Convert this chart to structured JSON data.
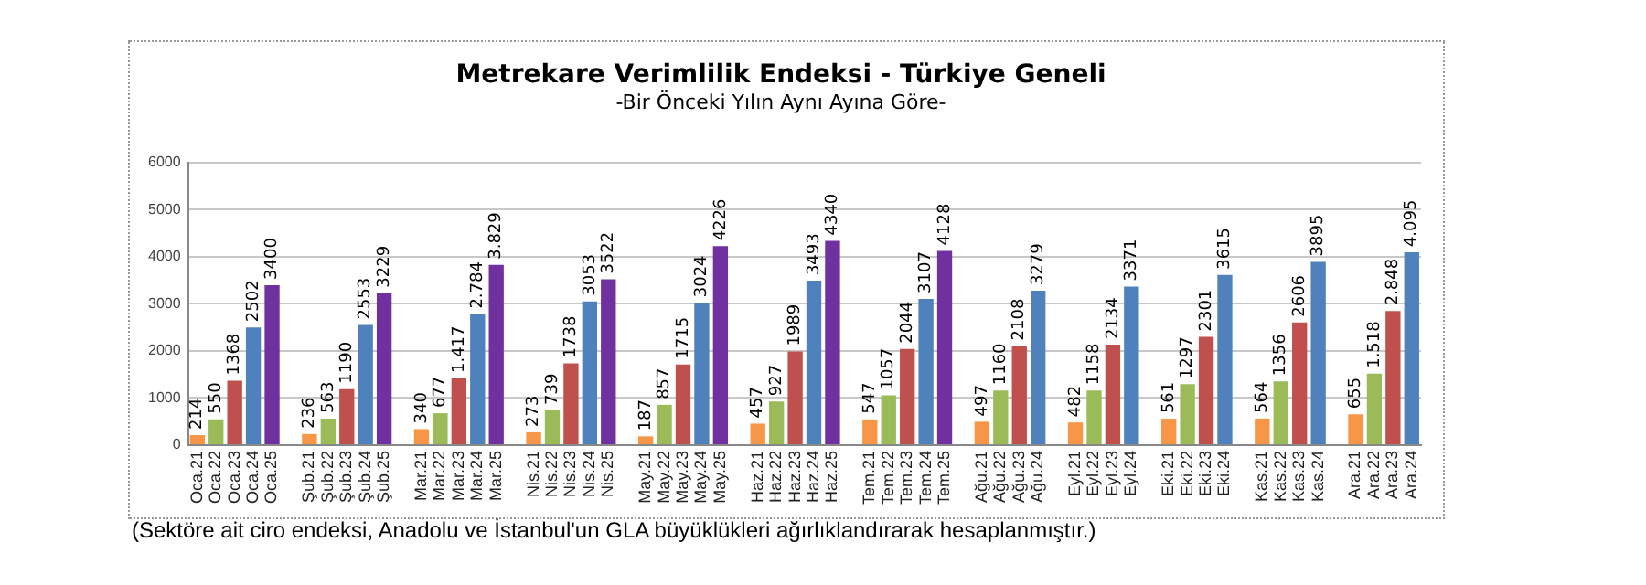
{
  "chart_data": {
    "type": "bar",
    "title": "Metrekare Verimlilik Endeksi - Türkiye Geneli",
    "subtitle": "-Bir Önceki Yılın Aynı Ayına Göre-",
    "categories": [
      "Oca.21",
      "Oca.22",
      "Oca.23",
      "Oca.24",
      "Oca.25",
      null,
      "Şub.21",
      "Şub.22",
      "Şub.23",
      "Şub.24",
      "Şub.25",
      null,
      "Mar.21",
      "Mar.22",
      "Mar.23",
      "Mar.24",
      "Mar.25",
      null,
      "Nis.21",
      "Nis.22",
      "Nis.23",
      "Nis.24",
      "Nis.25",
      null,
      "May.21",
      "May.22",
      "May.23",
      "May.24",
      "May.25",
      null,
      "Haz.21",
      "Haz.22",
      "Haz.23",
      "Haz.24",
      "Haz.25",
      null,
      "Tem.21",
      "Tem.22",
      "Tem.23",
      "Tem.24",
      "Tem.25",
      null,
      "Ağu.21",
      "Ağu.22",
      "Ağu.23",
      "Ağu.24",
      null,
      "Eyl.21",
      "Eyl.22",
      "Eyl.23",
      "Eyl.24",
      null,
      "Eki.21",
      "Eki.22",
      "Eki.23",
      "Eki.24",
      null,
      "Kas.21",
      "Kas.22",
      "Kas.23",
      "Kas.24",
      null,
      "Ara.21",
      "Ara.22",
      "Ara.23",
      "Ara.24"
    ],
    "values": [
      214,
      550,
      1368,
      2502,
      3400,
      null,
      236,
      563,
      1190,
      2553,
      3229,
      null,
      340,
      677,
      1417,
      2784,
      3829,
      null,
      273,
      739,
      1738,
      3053,
      3522,
      null,
      187,
      857,
      1715,
      3024,
      4226,
      null,
      457,
      927,
      1989,
      3493,
      4340,
      null,
      547,
      1057,
      2044,
      3107,
      4128,
      null,
      497,
      1160,
      2108,
      3279,
      null,
      482,
      1158,
      2134,
      3371,
      null,
      561,
      1297,
      2301,
      3615,
      null,
      564,
      1356,
      2606,
      3895,
      null,
      655,
      1518,
      2848,
      4095
    ],
    "value_labels": [
      "214",
      "550",
      "1368",
      "2502",
      "3400",
      null,
      "236",
      "563",
      "1190",
      "2553",
      "3229",
      null,
      "340",
      "677",
      "1.417",
      "2.784",
      "3.829",
      null,
      "273",
      "739",
      "1738",
      "3053",
      "3522",
      null,
      "187",
      "857",
      "1715",
      "3024",
      "4226",
      null,
      "457",
      "927",
      "1989",
      "3493",
      "4340",
      null,
      "547",
      "1057",
      "2044",
      "3107",
      "4128",
      null,
      "497",
      "1160",
      "2108",
      "3279",
      null,
      "482",
      "1158",
      "2134",
      "3371",
      null,
      "561",
      "1297",
      "2301",
      "3615",
      null,
      "564",
      "1356",
      "2606",
      "3895",
      null,
      "655",
      "1.518",
      "2.848",
      "4.095"
    ],
    "colors": [
      "#f79646",
      "#9bbb59",
      "#c0504d",
      "#4f81bd",
      "#7030a0",
      "#ffffff",
      "#f79646",
      "#9bbb59",
      "#c0504d",
      "#4f81bd",
      "#7030a0",
      "#ffffff",
      "#f79646",
      "#9bbb59",
      "#c0504d",
      "#4f81bd",
      "#7030a0",
      "#ffffff",
      "#f79646",
      "#9bbb59",
      "#c0504d",
      "#4f81bd",
      "#7030a0",
      "#ffffff",
      "#f79646",
      "#9bbb59",
      "#c0504d",
      "#4f81bd",
      "#7030a0",
      "#ffffff",
      "#f79646",
      "#9bbb59",
      "#c0504d",
      "#4f81bd",
      "#7030a0",
      "#ffffff",
      "#f79646",
      "#9bbb59",
      "#c0504d",
      "#4f81bd",
      "#7030a0",
      "#ffffff",
      "#f79646",
      "#9bbb59",
      "#c0504d",
      "#4f81bd",
      "#ffffff",
      "#f79646",
      "#9bbb59",
      "#c0504d",
      "#4f81bd",
      "#ffffff",
      "#f79646",
      "#9bbb59",
      "#c0504d",
      "#4f81bd",
      "#ffffff",
      "#f79646",
      "#9bbb59",
      "#c0504d",
      "#4f81bd",
      "#ffffff",
      "#f79646",
      "#9bbb59",
      "#c0504d",
      "#4f81bd"
    ],
    "ylim": [
      0,
      6000
    ],
    "yticks": [
      0,
      1000,
      2000,
      3000,
      4000,
      5000,
      6000
    ],
    "grid": "y",
    "legend": false,
    "annotations": [
      "(Sektöre ait ciro endeksi, Anadolu ve İstanbul'un GLA büyüklükleri ağırlıklandırarak hesaplanmıştır.)"
    ]
  }
}
